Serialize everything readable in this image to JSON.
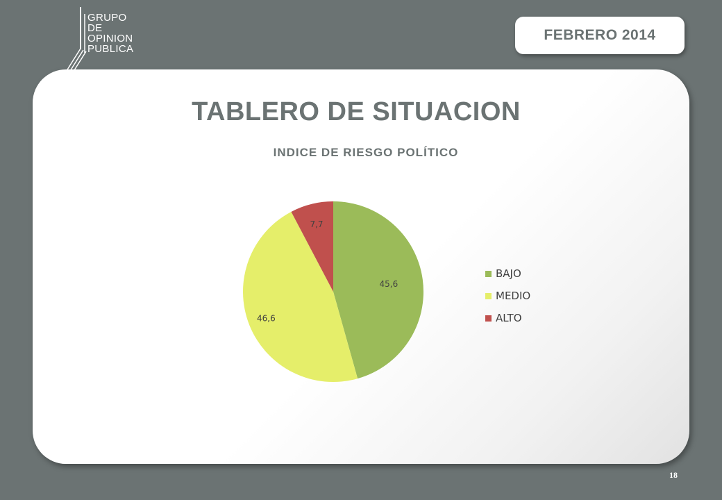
{
  "logo": {
    "lines": [
      "GRUPO",
      "DE",
      "OPINION",
      "PUBLICA"
    ]
  },
  "date_badge": "FEBRERO 2014",
  "page_title": "TABLERO DE SITUACION",
  "page_number": "18",
  "chart_data": {
    "type": "pie",
    "title": "INDICE DE RIESGO POLÍTICO",
    "categories": [
      "BAJO",
      "MEDIO",
      "ALTO"
    ],
    "values": [
      45.6,
      46.6,
      7.7
    ],
    "data_labels": [
      "45,6",
      "46,6",
      "7,7"
    ],
    "colors": [
      "#9bbb59",
      "#e5ee6a",
      "#c0504d"
    ],
    "legend_position": "right"
  }
}
